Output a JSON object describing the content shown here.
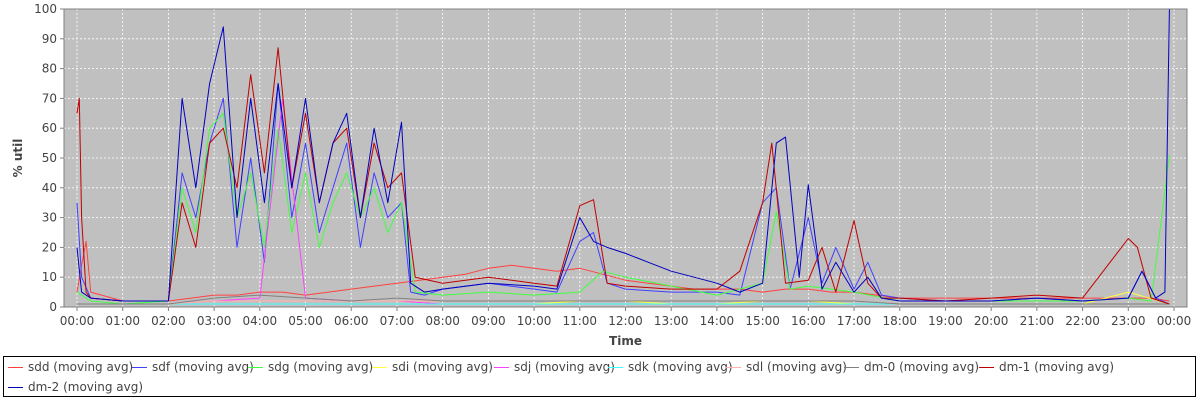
{
  "chart_data": {
    "type": "line",
    "xlabel": "Time",
    "ylabel": "% util",
    "ylim": [
      0,
      100
    ],
    "xlim": [
      0,
      24
    ],
    "x_ticks": [
      "00:00",
      "01:00",
      "02:00",
      "03:00",
      "04:00",
      "05:00",
      "06:00",
      "07:00",
      "08:00",
      "09:00",
      "10:00",
      "11:00",
      "12:00",
      "13:00",
      "14:00",
      "15:00",
      "16:00",
      "17:00",
      "18:00",
      "19:00",
      "20:00",
      "21:00",
      "22:00",
      "23:00",
      "00:00"
    ],
    "y_ticks": [
      0,
      10,
      20,
      30,
      40,
      50,
      60,
      70,
      80,
      90,
      100
    ],
    "grid": true,
    "legend_position": "bottom",
    "series": [
      {
        "name": "sdd (moving avg)",
        "color": "#ff4040",
        "x": [
          0,
          0.1,
          0.2,
          0.3,
          1,
          2,
          2.5,
          3,
          3.5,
          4,
          4.5,
          5,
          5.5,
          6,
          6.5,
          7,
          7.5,
          8,
          8.5,
          9,
          9.5,
          10,
          10.5,
          11,
          11.5,
          12,
          12.5,
          13,
          13.5,
          14,
          14.5,
          15,
          15.5,
          16,
          16.5,
          17,
          17.5,
          18,
          19,
          20,
          21,
          22,
          23,
          23.5,
          23.9
        ],
        "y": [
          5,
          14,
          22,
          5,
          2,
          2,
          3,
          4,
          4,
          5,
          5,
          4,
          5,
          6,
          7,
          8,
          9,
          10,
          11,
          13,
          14,
          13,
          12,
          13,
          11,
          9,
          8,
          7,
          6,
          6,
          6,
          5,
          6,
          6,
          5,
          5,
          4,
          3,
          3,
          3,
          3,
          3,
          3,
          3,
          2
        ]
      },
      {
        "name": "sdf (moving avg)",
        "color": "#4040ff",
        "x": [
          0,
          0.1,
          0.3,
          1,
          2,
          2.3,
          2.6,
          2.9,
          3.2,
          3.5,
          3.8,
          4.1,
          4.4,
          4.7,
          5,
          5.3,
          5.6,
          5.9,
          6.2,
          6.5,
          6.8,
          7.1,
          7.3,
          7.6,
          8,
          9,
          10,
          10.5,
          11,
          11.3,
          11.6,
          12,
          13,
          14,
          14.5,
          15,
          15.3,
          15.6,
          16,
          16.3,
          16.6,
          17,
          17.3,
          17.6,
          18,
          19,
          20,
          21,
          22,
          23,
          23.3,
          23.6,
          23.9
        ],
        "y": [
          35,
          10,
          3,
          2,
          2,
          45,
          30,
          55,
          70,
          20,
          50,
          15,
          75,
          30,
          55,
          25,
          40,
          55,
          20,
          45,
          30,
          35,
          5,
          4,
          6,
          8,
          6,
          5,
          22,
          25,
          8,
          6,
          5,
          5,
          4,
          35,
          40,
          6,
          30,
          8,
          20,
          6,
          15,
          4,
          3,
          2,
          2,
          3,
          2,
          3,
          12,
          3,
          1
        ]
      },
      {
        "name": "sdg (moving avg)",
        "color": "#40ff40",
        "x": [
          0,
          0.3,
          1,
          2,
          2.3,
          2.6,
          2.9,
          3.2,
          3.5,
          3.8,
          4.1,
          4.4,
          4.7,
          5,
          5.3,
          5.6,
          5.9,
          6.2,
          6.5,
          6.8,
          7.1,
          7.4,
          8,
          9,
          10,
          11,
          11.5,
          12,
          13,
          14,
          15,
          15.3,
          15.6,
          16,
          17,
          18,
          19,
          20,
          21,
          22,
          23,
          23.5,
          23.9
        ],
        "y": [
          5,
          2,
          1,
          2,
          40,
          25,
          60,
          65,
          30,
          45,
          20,
          60,
          25,
          45,
          20,
          35,
          45,
          30,
          40,
          25,
          35,
          5,
          4,
          5,
          4,
          5,
          12,
          10,
          7,
          4,
          8,
          32,
          6,
          7,
          5,
          2,
          2,
          2,
          2,
          2,
          3,
          2,
          51
        ]
      },
      {
        "name": "sdi (moving avg)",
        "color": "#ffff40",
        "x": [
          0,
          1,
          2,
          3,
          4,
          5,
          6,
          7,
          8,
          9,
          10,
          11,
          12,
          13,
          14,
          15,
          16,
          17,
          18,
          19,
          20,
          21,
          22,
          23,
          23.9
        ],
        "y": [
          1,
          1,
          1,
          2,
          2,
          2,
          2,
          2,
          1,
          1,
          1,
          2,
          2,
          1,
          1,
          2,
          2,
          1,
          1,
          1,
          1,
          1,
          1,
          5,
          1
        ]
      },
      {
        "name": "sdj (moving avg)",
        "color": "#ff40ff",
        "x": [
          0,
          1,
          2,
          3,
          4,
          4.5,
          5,
          6,
          7,
          8,
          9,
          10,
          11,
          12,
          13,
          14,
          15,
          16,
          17,
          18,
          19,
          20,
          21,
          22,
          23,
          23.9
        ],
        "y": [
          1,
          1,
          1,
          2,
          3,
          70,
          3,
          2,
          2,
          1,
          1,
          1,
          1,
          1,
          1,
          1,
          1,
          1,
          1,
          1,
          1,
          1,
          1,
          1,
          1,
          1
        ]
      },
      {
        "name": "sdk (moving avg)",
        "color": "#40ffff",
        "x": [
          0,
          1,
          2,
          3,
          4,
          5,
          6,
          7,
          8,
          9,
          10,
          11,
          12,
          13,
          14,
          15,
          16,
          17,
          18,
          19,
          20,
          21,
          22,
          23,
          23.9
        ],
        "y": [
          1,
          1,
          1,
          1,
          1,
          1,
          1,
          1,
          1,
          1,
          1,
          1,
          1,
          1,
          1,
          1,
          1,
          1,
          1,
          1,
          1,
          1,
          1,
          1,
          1
        ]
      },
      {
        "name": "sdl (moving avg)",
        "color": "#ffafaf",
        "x": [
          0,
          1,
          2,
          3,
          4,
          5,
          6,
          7,
          8,
          9,
          10,
          11,
          12,
          13,
          14,
          15,
          16,
          17,
          18,
          19,
          20,
          21,
          22,
          23,
          23.9
        ],
        "y": [
          1,
          1,
          1,
          2,
          2,
          2,
          2,
          2,
          2,
          2,
          2,
          2,
          2,
          2,
          2,
          2,
          2,
          2,
          1,
          1,
          1,
          1,
          1,
          1,
          1
        ]
      },
      {
        "name": "dm-0 (moving avg)",
        "color": "#808080",
        "x": [
          0,
          1,
          2,
          3,
          4,
          5,
          6,
          7,
          8,
          9,
          10,
          11,
          12,
          13,
          14,
          15,
          16,
          17,
          18,
          19,
          20,
          21,
          22,
          23,
          23.9
        ],
        "y": [
          1,
          1,
          1,
          3,
          4,
          3,
          2,
          3,
          2,
          2,
          2,
          2,
          2,
          2,
          2,
          2,
          2,
          2,
          1,
          1,
          1,
          1,
          1,
          1,
          1
        ]
      },
      {
        "name": "dm-1 (moving avg)",
        "color": "#c00000",
        "x": [
          0,
          0.05,
          0.1,
          0.2,
          0.3,
          1,
          2,
          2.3,
          2.6,
          2.9,
          3.2,
          3.5,
          3.8,
          4.1,
          4.4,
          4.7,
          5,
          5.3,
          5.6,
          5.9,
          6.2,
          6.5,
          6.8,
          7.1,
          7.4,
          8,
          9,
          10,
          10.5,
          11,
          11.3,
          11.6,
          12,
          13,
          14,
          14.5,
          15,
          15.2,
          15.5,
          16,
          16.3,
          16.6,
          17,
          17.3,
          17.6,
          18,
          19,
          20,
          21,
          22,
          23,
          23.2,
          23.5,
          23.9
        ],
        "y": [
          65,
          70,
          30,
          5,
          3,
          2,
          2,
          35,
          20,
          55,
          60,
          40,
          78,
          45,
          87,
          40,
          65,
          35,
          55,
          60,
          30,
          55,
          40,
          45,
          10,
          8,
          10,
          8,
          7,
          34,
          36,
          8,
          7,
          6,
          6,
          12,
          35,
          55,
          8,
          9,
          20,
          5,
          29,
          8,
          3,
          3,
          2,
          3,
          4,
          3,
          23,
          20,
          3,
          1
        ]
      },
      {
        "name": "dm-2 (moving avg)",
        "color": "#0000c0",
        "x": [
          0,
          0.1,
          0.3,
          1,
          2,
          2.3,
          2.6,
          2.9,
          3.2,
          3.5,
          3.8,
          4.1,
          4.4,
          4.7,
          5,
          5.3,
          5.6,
          5.9,
          6.2,
          6.5,
          6.8,
          7.1,
          7.3,
          7.6,
          8,
          9,
          10,
          10.5,
          11,
          11.3,
          11.6,
          12,
          12.5,
          13,
          13.5,
          14,
          14.5,
          15,
          15.3,
          15.5,
          15.8,
          16,
          16.3,
          16.6,
          17,
          17.3,
          17.6,
          18,
          19,
          20,
          21,
          22,
          23,
          23.3,
          23.6,
          23.8,
          23.9
        ],
        "y": [
          20,
          5,
          3,
          2,
          2,
          70,
          40,
          75,
          94,
          30,
          70,
          35,
          75,
          40,
          70,
          35,
          55,
          65,
          30,
          60,
          35,
          62,
          8,
          5,
          6,
          8,
          7,
          6,
          30,
          22,
          20,
          18,
          15,
          12,
          10,
          8,
          5,
          8,
          55,
          57,
          10,
          41,
          6,
          15,
          5,
          10,
          3,
          2,
          2,
          2,
          3,
          2,
          3,
          12,
          3,
          5,
          100
        ]
      }
    ]
  }
}
